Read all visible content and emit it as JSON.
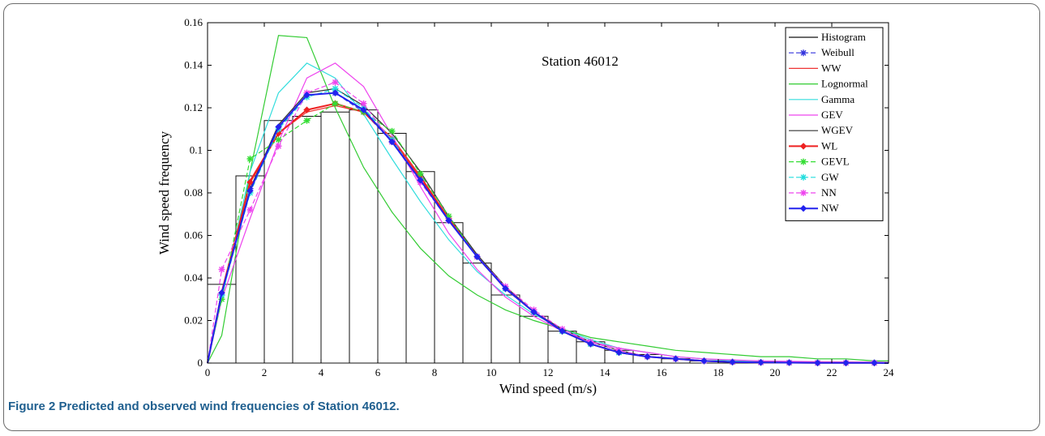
{
  "caption": {
    "label": "Figure 2",
    "text": " Predicted and observed wind frequencies of Station 46012."
  },
  "chart_data": {
    "type": "line",
    "title": "",
    "annotation": "Station 46012",
    "xlabel": "Wind speed (m/s)",
    "ylabel": "Wind speed frequency",
    "xlim": [
      0,
      24
    ],
    "ylim": [
      0,
      0.16
    ],
    "xticks": [
      "0",
      "2",
      "4",
      "6",
      "8",
      "10",
      "12",
      "14",
      "16",
      "18",
      "20",
      "22",
      "24"
    ],
    "yticks": [
      "0",
      "0.02",
      "0.04",
      "0.06",
      "0.08",
      "0.1",
      "0.12",
      "0.14",
      "0.16"
    ],
    "grid": false,
    "legend_position": "top-right",
    "histogram": {
      "name": "Histogram",
      "bin_width": 1,
      "bin_starts": [
        0,
        1,
        2,
        3,
        4,
        5,
        6,
        7,
        8,
        9,
        10,
        11,
        12,
        13,
        14,
        15,
        16,
        17,
        18,
        19,
        20,
        21,
        22,
        23
      ],
      "values": [
        0.037,
        0.088,
        0.114,
        0.116,
        0.118,
        0.119,
        0.108,
        0.09,
        0.066,
        0.047,
        0.032,
        0.022,
        0.015,
        0.01,
        0.006,
        0.004,
        0.002,
        0.001,
        0.001,
        0.0005,
        0.0003,
        0.0002,
        0.0001,
        0.0001
      ]
    },
    "x": [
      0,
      0.5,
      1.5,
      2.5,
      3.5,
      4.5,
      5.5,
      6.5,
      7.5,
      8.5,
      9.5,
      10.5,
      11.5,
      12.5,
      13.5,
      14.5,
      15.5,
      16.5,
      17.5,
      18.5,
      19.5,
      20.5,
      21.5,
      22.5,
      23.5,
      24
    ],
    "series": [
      {
        "name": "Weibull",
        "color": "#3333dd",
        "dash": "6,3",
        "marker": "star",
        "values": [
          0,
          0.032,
          0.082,
          0.11,
          0.126,
          0.127,
          0.118,
          0.104,
          0.086,
          0.067,
          0.05,
          0.035,
          0.024,
          0.015,
          0.009,
          0.005,
          0.003,
          0.002,
          0.001,
          0.0005,
          0.0003,
          0.0002,
          0.0001,
          0.0001,
          0.0001,
          0
        ]
      },
      {
        "name": "WW",
        "color": "#ee3333",
        "dash": "",
        "marker": "none",
        "values": [
          0,
          0.034,
          0.086,
          0.108,
          0.118,
          0.121,
          0.118,
          0.106,
          0.088,
          0.068,
          0.05,
          0.035,
          0.024,
          0.015,
          0.009,
          0.005,
          0.003,
          0.002,
          0.001,
          0.0005,
          0.0003,
          0.0002,
          0.0001,
          0.0001,
          0.0001,
          0
        ]
      },
      {
        "name": "Lognormal",
        "color": "#33cc33",
        "dash": "",
        "marker": "none",
        "values": [
          0,
          0.013,
          0.09,
          0.154,
          0.153,
          0.12,
          0.092,
          0.071,
          0.054,
          0.041,
          0.032,
          0.025,
          0.02,
          0.016,
          0.012,
          0.01,
          0.008,
          0.006,
          0.005,
          0.004,
          0.003,
          0.003,
          0.002,
          0.002,
          0.001,
          0.001
        ]
      },
      {
        "name": "Gamma",
        "color": "#33dddd",
        "dash": "",
        "marker": "none",
        "values": [
          0,
          0.03,
          0.09,
          0.127,
          0.141,
          0.134,
          0.117,
          0.096,
          0.076,
          0.058,
          0.043,
          0.032,
          0.023,
          0.016,
          0.011,
          0.007,
          0.005,
          0.003,
          0.002,
          0.001,
          0.001,
          0.0005,
          0.0003,
          0.0002,
          0.0001,
          0.0001
        ]
      },
      {
        "name": "GEV",
        "color": "#ee44ee",
        "dash": "",
        "marker": "none",
        "values": [
          0,
          0.03,
          0.068,
          0.104,
          0.134,
          0.141,
          0.13,
          0.107,
          0.083,
          0.061,
          0.044,
          0.031,
          0.022,
          0.015,
          0.01,
          0.007,
          0.005,
          0.003,
          0.002,
          0.0015,
          0.001,
          0.0008,
          0.0006,
          0.0005,
          0.0004,
          0.0003
        ]
      },
      {
        "name": "WGEV",
        "color": "#333333",
        "dash": "",
        "marker": "none",
        "values": [
          0,
          0.033,
          0.082,
          0.112,
          0.127,
          0.129,
          0.121,
          0.108,
          0.09,
          0.069,
          0.051,
          0.036,
          0.024,
          0.016,
          0.01,
          0.006,
          0.003,
          0.002,
          0.001,
          0.0005,
          0.0003,
          0.0002,
          0.0001,
          0.0001,
          0.0001,
          0
        ]
      },
      {
        "name": "WL",
        "color": "#ee2222",
        "dash": "",
        "marker": "diamond",
        "values": [
          0,
          0.033,
          0.085,
          0.108,
          0.119,
          0.122,
          0.118,
          0.105,
          0.087,
          0.068,
          0.05,
          0.035,
          0.024,
          0.015,
          0.009,
          0.005,
          0.003,
          0.002,
          0.001,
          0.0005,
          0.0003,
          0.0002,
          0.0001,
          0.0001,
          0.0001,
          0
        ]
      },
      {
        "name": "GEVL",
        "color": "#33dd33",
        "dash": "6,3",
        "marker": "star",
        "values": [
          0,
          0.03,
          0.096,
          0.105,
          0.114,
          0.122,
          0.118,
          0.109,
          0.089,
          0.069,
          0.05,
          0.035,
          0.024,
          0.015,
          0.009,
          0.005,
          0.003,
          0.002,
          0.001,
          0.0005,
          0.0003,
          0.0002,
          0.0001,
          0.0001,
          0.0001,
          0
        ]
      },
      {
        "name": "GW",
        "color": "#22dddd",
        "dash": "6,3",
        "marker": "star",
        "values": [
          0,
          0.032,
          0.08,
          0.11,
          0.125,
          0.129,
          0.12,
          0.105,
          0.086,
          0.067,
          0.05,
          0.035,
          0.024,
          0.015,
          0.009,
          0.005,
          0.003,
          0.002,
          0.001,
          0.0005,
          0.0003,
          0.0002,
          0.0001,
          0.0001,
          0.0001,
          0
        ]
      },
      {
        "name": "NN",
        "color": "#ee44ee",
        "dash": "6,3",
        "marker": "star",
        "values": [
          0,
          0.044,
          0.072,
          0.102,
          0.127,
          0.132,
          0.122,
          0.104,
          0.085,
          0.067,
          0.05,
          0.036,
          0.025,
          0.016,
          0.01,
          0.006,
          0.003,
          0.002,
          0.001,
          0.0005,
          0.0003,
          0.0002,
          0.0001,
          0.0001,
          0.0001,
          0
        ]
      },
      {
        "name": "NW",
        "color": "#2222ee",
        "dash": "",
        "marker": "diamond",
        "values": [
          0,
          0.033,
          0.081,
          0.111,
          0.126,
          0.127,
          0.119,
          0.104,
          0.086,
          0.067,
          0.05,
          0.035,
          0.024,
          0.015,
          0.009,
          0.005,
          0.003,
          0.002,
          0.001,
          0.0005,
          0.0003,
          0.0002,
          0.0001,
          0.0001,
          0.0001,
          0
        ]
      }
    ]
  }
}
